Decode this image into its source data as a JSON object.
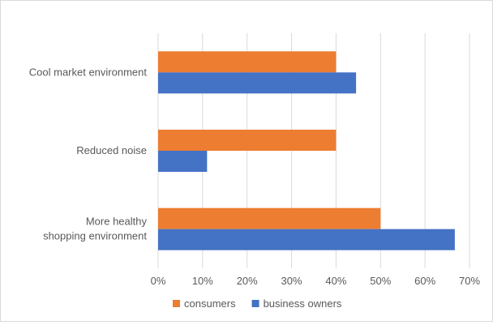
{
  "chart_data": {
    "type": "bar",
    "orientation": "horizontal",
    "title": "",
    "xlabel": "",
    "ylabel": "",
    "categories": [
      [
        "Cool market environment"
      ],
      [
        "Reduced noise"
      ],
      [
        "More healthy",
        "shopping environment"
      ]
    ],
    "series": [
      {
        "name": "consumers",
        "color": "#ED7D31",
        "values": [
          0.4,
          0.4,
          0.5
        ]
      },
      {
        "name": "business owners",
        "color": "#4472C4",
        "values": [
          0.445,
          0.11,
          0.667
        ]
      }
    ],
    "xlim": [
      0,
      0.7
    ],
    "x_ticks": [
      "0%",
      "10%",
      "20%",
      "30%",
      "40%",
      "50%",
      "60%",
      "70%"
    ],
    "grid": "vertical",
    "legend_position": "bottom"
  }
}
